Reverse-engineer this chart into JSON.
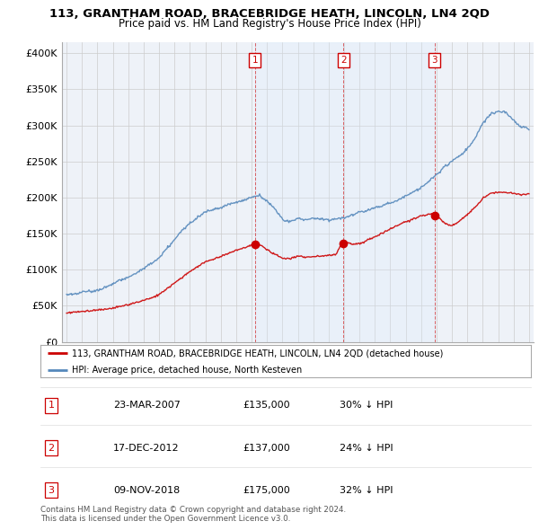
{
  "title": "113, GRANTHAM ROAD, BRACEBRIDGE HEATH, LINCOLN, LN4 2QD",
  "subtitle": "Price paid vs. HM Land Registry's House Price Index (HPI)",
  "ylabel_ticks": [
    "£0",
    "£50K",
    "£100K",
    "£150K",
    "£200K",
    "£250K",
    "£300K",
    "£350K",
    "£400K"
  ],
  "ytick_values": [
    0,
    50000,
    100000,
    150000,
    200000,
    250000,
    300000,
    350000,
    400000
  ],
  "ylim": [
    0,
    415000
  ],
  "xlim_start": 1994.7,
  "xlim_end": 2025.3,
  "sale_dates": [
    2007.22,
    2012.96,
    2018.86
  ],
  "sale_prices": [
    135000,
    137000,
    175000
  ],
  "sale_labels": [
    "1",
    "2",
    "3"
  ],
  "legend_red": "113, GRANTHAM ROAD, BRACEBRIDGE HEATH, LINCOLN, LN4 2QD (detached house)",
  "legend_blue": "HPI: Average price, detached house, North Kesteven",
  "table_rows": [
    [
      "1",
      "23-MAR-2007",
      "£135,000",
      "30% ↓ HPI"
    ],
    [
      "2",
      "17-DEC-2012",
      "£137,000",
      "24% ↓ HPI"
    ],
    [
      "3",
      "09-NOV-2018",
      "£175,000",
      "32% ↓ HPI"
    ]
  ],
  "footnote1": "Contains HM Land Registry data © Crown copyright and database right 2024.",
  "footnote2": "This data is licensed under the Open Government Licence v3.0.",
  "red_color": "#cc0000",
  "blue_color": "#5588bb",
  "shade_color": "#ddeeff",
  "grid_color": "#cccccc",
  "bg_color": "#ffffff",
  "plot_bg": "#eef2f8"
}
